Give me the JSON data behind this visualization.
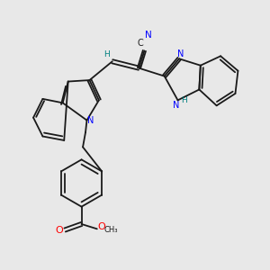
{
  "background_color": "#e8e8e8",
  "bond_color": "#1a1a1a",
  "nitrogen_color": "#0000ff",
  "oxygen_color": "#ff0000",
  "cyan_color": "#008080",
  "figsize": [
    3.0,
    3.0
  ],
  "dpi": 100,
  "xlim": [
    0,
    10
  ],
  "ylim": [
    0,
    10
  ],
  "lw": 1.3
}
